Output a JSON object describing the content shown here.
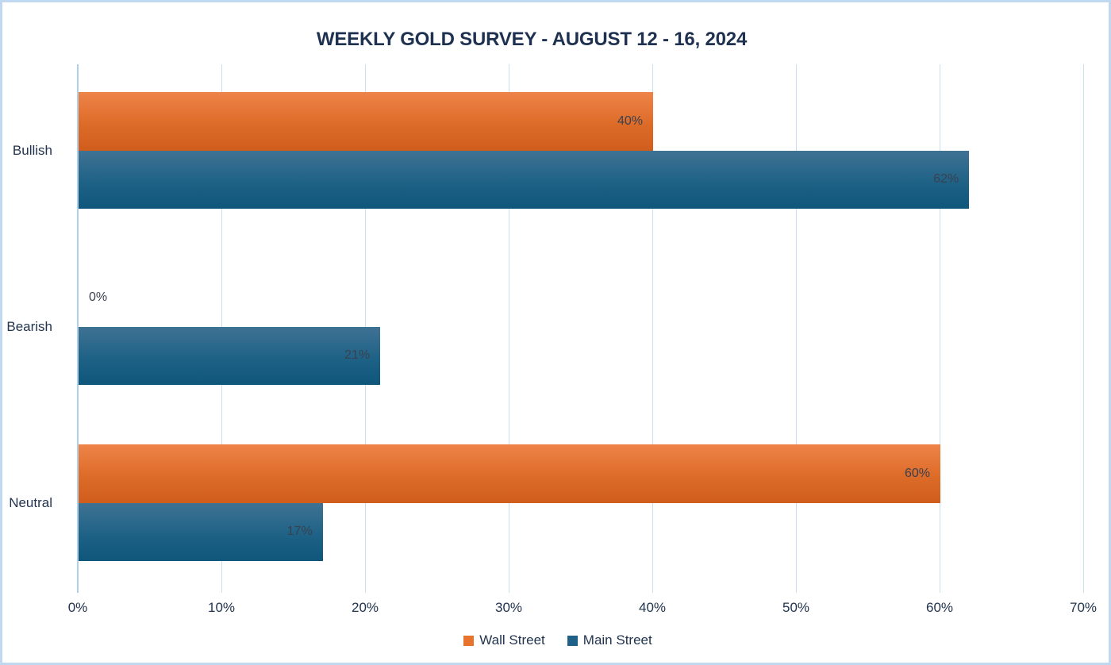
{
  "chart_data": {
    "type": "bar",
    "orientation": "horizontal",
    "title": "WEEKLY GOLD SURVEY - AUGUST 12 - 16, 2024",
    "categories": [
      "Bullish",
      "Bearish",
      "Neutral"
    ],
    "series": [
      {
        "name": "Wall Street",
        "values": [
          40,
          0,
          60
        ],
        "labels": [
          "40%",
          "0%",
          "60%"
        ],
        "color_top": "#ee8449",
        "color_mid": "#dd6b28",
        "color_bottom": "#d05d1c",
        "legend_color": "#e8732c"
      },
      {
        "name": "Main Street",
        "values": [
          62,
          21,
          17
        ],
        "labels": [
          "62%",
          "21%",
          "17%"
        ],
        "color_top": "#3f7293",
        "color_mid": "#1e6286",
        "color_bottom": "#0e567a",
        "legend_color": "#206187"
      }
    ],
    "value_suffix": "%",
    "xlim": [
      0,
      70
    ],
    "x_tick_step": 10,
    "x_ticks": [
      "0%",
      "10%",
      "20%",
      "30%",
      "40%",
      "50%",
      "60%",
      "70%"
    ],
    "grid": "vertical-gridlines-only",
    "legend_position": "bottom-center"
  },
  "colors": {
    "background": "#ffffff",
    "frame_border": "#c0d9f0",
    "title_text": "#1f3150",
    "category_text": "#22344f",
    "axis_text": "#22344f",
    "data_label_text": "#394150",
    "gridline": "#c9e0f3",
    "axis_line": "#afd0ea"
  }
}
